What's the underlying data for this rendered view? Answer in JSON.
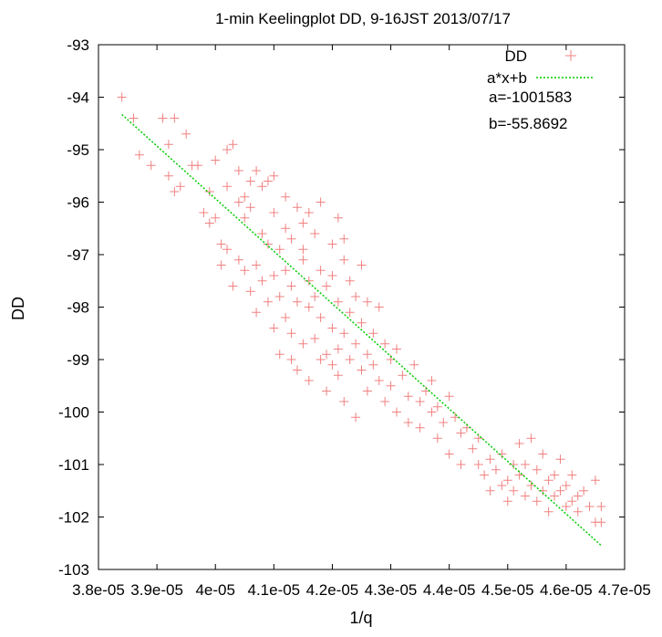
{
  "chart_data": {
    "type": "scatter",
    "title": "1-min Keelingplot DD, 9-16JST 2013/07/17",
    "xlabel": "1/q",
    "ylabel": "DD",
    "xlim": [
      3.8e-05,
      4.7e-05
    ],
    "ylim": [
      -103,
      -93
    ],
    "x_ticks": [
      {
        "value": 3.8e-05,
        "label": "3.8e-05"
      },
      {
        "value": 3.9e-05,
        "label": "3.9e-05"
      },
      {
        "value": 4e-05,
        "label": "4e-05"
      },
      {
        "value": 4.1e-05,
        "label": "4.1e-05"
      },
      {
        "value": 4.2e-05,
        "label": "4.2e-05"
      },
      {
        "value": 4.3e-05,
        "label": "4.3e-05"
      },
      {
        "value": 4.4e-05,
        "label": "4.4e-05"
      },
      {
        "value": 4.5e-05,
        "label": "4.5e-05"
      },
      {
        "value": 4.6e-05,
        "label": "4.6e-05"
      },
      {
        "value": 4.7e-05,
        "label": "4.7e-05"
      }
    ],
    "y_ticks": [
      {
        "value": -93,
        "label": "-93"
      },
      {
        "value": -94,
        "label": "-94"
      },
      {
        "value": -95,
        "label": "-95"
      },
      {
        "value": -96,
        "label": "-96"
      },
      {
        "value": -97,
        "label": "-97"
      },
      {
        "value": -98,
        "label": "-98"
      },
      {
        "value": -99,
        "label": "-99"
      },
      {
        "value": -100,
        "label": "-100"
      },
      {
        "value": -101,
        "label": "-101"
      },
      {
        "value": -102,
        "label": "-102"
      },
      {
        "value": -103,
        "label": "-103"
      }
    ],
    "grid": false,
    "legend_position": "top-right",
    "series": [
      {
        "name": "DD",
        "kind": "scatter",
        "marker": "plus",
        "color": "#f08080",
        "points": [
          [
            3.84e-05,
            -94.0
          ],
          [
            3.86e-05,
            -94.4
          ],
          [
            3.87e-05,
            -95.1
          ],
          [
            3.89e-05,
            -95.3
          ],
          [
            3.91e-05,
            -94.4
          ],
          [
            3.93e-05,
            -94.4
          ],
          [
            3.92e-05,
            -94.9
          ],
          [
            3.92e-05,
            -95.5
          ],
          [
            3.93e-05,
            -95.8
          ],
          [
            3.94e-05,
            -95.7
          ],
          [
            3.95e-05,
            -94.7
          ],
          [
            3.96e-05,
            -95.3
          ],
          [
            3.97e-05,
            -95.3
          ],
          [
            3.98e-05,
            -96.2
          ],
          [
            3.99e-05,
            -95.8
          ],
          [
            3.99e-05,
            -96.4
          ],
          [
            4e-05,
            -96.3
          ],
          [
            4e-05,
            -95.2
          ],
          [
            4.01e-05,
            -96.8
          ],
          [
            4.01e-05,
            -97.2
          ],
          [
            4.02e-05,
            -96.9
          ],
          [
            4.02e-05,
            -95.7
          ],
          [
            4.02e-05,
            -95.0
          ],
          [
            4.03e-05,
            -94.9
          ],
          [
            4.03e-05,
            -97.6
          ],
          [
            4.04e-05,
            -96.0
          ],
          [
            4.04e-05,
            -97.1
          ],
          [
            4.04e-05,
            -95.4
          ],
          [
            4.05e-05,
            -97.3
          ],
          [
            4.05e-05,
            -96.3
          ],
          [
            4.05e-05,
            -95.9
          ],
          [
            4.06e-05,
            -97.7
          ],
          [
            4.06e-05,
            -95.6
          ],
          [
            4.06e-05,
            -96.1
          ],
          [
            4.07e-05,
            -95.4
          ],
          [
            4.07e-05,
            -97.2
          ],
          [
            4.07e-05,
            -98.1
          ],
          [
            4.08e-05,
            -96.6
          ],
          [
            4.08e-05,
            -95.7
          ],
          [
            4.08e-05,
            -97.5
          ],
          [
            4.09e-05,
            -96.8
          ],
          [
            4.09e-05,
            -95.6
          ],
          [
            4.09e-05,
            -97.9
          ],
          [
            4.1e-05,
            -96.2
          ],
          [
            4.1e-05,
            -97.4
          ],
          [
            4.1e-05,
            -95.5
          ],
          [
            4.1e-05,
            -98.4
          ],
          [
            4.11e-05,
            -96.9
          ],
          [
            4.11e-05,
            -97.8
          ],
          [
            4.11e-05,
            -98.9
          ],
          [
            4.12e-05,
            -96.5
          ],
          [
            4.12e-05,
            -97.3
          ],
          [
            4.12e-05,
            -98.2
          ],
          [
            4.12e-05,
            -95.9
          ],
          [
            4.13e-05,
            -99.0
          ],
          [
            4.13e-05,
            -96.7
          ],
          [
            4.13e-05,
            -97.6
          ],
          [
            4.13e-05,
            -98.5
          ],
          [
            4.14e-05,
            -96.1
          ],
          [
            4.14e-05,
            -97.9
          ],
          [
            4.14e-05,
            -99.2
          ],
          [
            4.15e-05,
            -96.4
          ],
          [
            4.15e-05,
            -97.1
          ],
          [
            4.15e-05,
            -98.7
          ],
          [
            4.15e-05,
            -96.9
          ],
          [
            4.16e-05,
            -97.5
          ],
          [
            4.16e-05,
            -98.0
          ],
          [
            4.16e-05,
            -99.4
          ],
          [
            4.16e-05,
            -96.2
          ],
          [
            4.17e-05,
            -97.8
          ],
          [
            4.17e-05,
            -98.6
          ],
          [
            4.17e-05,
            -96.6
          ],
          [
            4.18e-05,
            -97.3
          ],
          [
            4.18e-05,
            -99.0
          ],
          [
            4.18e-05,
            -98.2
          ],
          [
            4.18e-05,
            -96.0
          ],
          [
            4.19e-05,
            -97.6
          ],
          [
            4.19e-05,
            -98.9
          ],
          [
            4.19e-05,
            -99.6
          ],
          [
            4.2e-05,
            -96.8
          ],
          [
            4.2e-05,
            -97.4
          ],
          [
            4.2e-05,
            -98.4
          ],
          [
            4.2e-05,
            -99.1
          ],
          [
            4.21e-05,
            -96.3
          ],
          [
            4.21e-05,
            -97.9
          ],
          [
            4.21e-05,
            -98.8
          ],
          [
            4.21e-05,
            -99.3
          ],
          [
            4.22e-05,
            -97.1
          ],
          [
            4.22e-05,
            -98.5
          ],
          [
            4.22e-05,
            -96.7
          ],
          [
            4.22e-05,
            -99.8
          ],
          [
            4.23e-05,
            -97.5
          ],
          [
            4.23e-05,
            -98.1
          ],
          [
            4.23e-05,
            -99.0
          ],
          [
            4.24e-05,
            -97.8
          ],
          [
            4.24e-05,
            -98.7
          ],
          [
            4.24e-05,
            -100.1
          ],
          [
            4.25e-05,
            -97.2
          ],
          [
            4.25e-05,
            -98.3
          ],
          [
            4.25e-05,
            -99.2
          ],
          [
            4.26e-05,
            -97.9
          ],
          [
            4.26e-05,
            -98.9
          ],
          [
            4.26e-05,
            -99.6
          ],
          [
            4.27e-05,
            -98.5
          ],
          [
            4.27e-05,
            -99.1
          ],
          [
            4.28e-05,
            -98.0
          ],
          [
            4.28e-05,
            -99.4
          ],
          [
            4.29e-05,
            -98.7
          ],
          [
            4.29e-05,
            -99.8
          ],
          [
            4.3e-05,
            -99.0
          ],
          [
            4.3e-05,
            -99.5
          ],
          [
            4.31e-05,
            -98.8
          ],
          [
            4.31e-05,
            -100.0
          ],
          [
            4.32e-05,
            -99.3
          ],
          [
            4.33e-05,
            -99.7
          ],
          [
            4.33e-05,
            -100.2
          ],
          [
            4.34e-05,
            -99.1
          ],
          [
            4.35e-05,
            -99.8
          ],
          [
            4.35e-05,
            -100.3
          ],
          [
            4.36e-05,
            -99.6
          ],
          [
            4.37e-05,
            -100.0
          ],
          [
            4.37e-05,
            -99.4
          ],
          [
            4.38e-05,
            -100.5
          ],
          [
            4.38e-05,
            -99.9
          ],
          [
            4.39e-05,
            -100.2
          ],
          [
            4.4e-05,
            -99.7
          ],
          [
            4.4e-05,
            -100.8
          ],
          [
            4.41e-05,
            -100.1
          ],
          [
            4.42e-05,
            -100.4
          ],
          [
            4.42e-05,
            -101.0
          ],
          [
            4.43e-05,
            -100.3
          ],
          [
            4.44e-05,
            -100.7
          ],
          [
            4.45e-05,
            -101.0
          ],
          [
            4.45e-05,
            -100.5
          ],
          [
            4.46e-05,
            -101.2
          ],
          [
            4.47e-05,
            -100.9
          ],
          [
            4.47e-05,
            -101.5
          ],
          [
            4.48e-05,
            -101.1
          ],
          [
            4.49e-05,
            -101.4
          ],
          [
            4.49e-05,
            -100.8
          ],
          [
            4.5e-05,
            -101.3
          ],
          [
            4.5e-05,
            -101.7
          ],
          [
            4.51e-05,
            -101.0
          ],
          [
            4.51e-05,
            -101.5
          ],
          [
            4.52e-05,
            -101.2
          ],
          [
            4.52e-05,
            -100.6
          ],
          [
            4.53e-05,
            -101.6
          ],
          [
            4.53e-05,
            -101.0
          ],
          [
            4.54e-05,
            -101.4
          ],
          [
            4.54e-05,
            -100.5
          ],
          [
            4.55e-05,
            -101.7
          ],
          [
            4.55e-05,
            -101.1
          ],
          [
            4.56e-05,
            -101.5
          ],
          [
            4.56e-05,
            -100.8
          ],
          [
            4.57e-05,
            -101.3
          ],
          [
            4.57e-05,
            -101.9
          ],
          [
            4.58e-05,
            -101.6
          ],
          [
            4.58e-05,
            -101.2
          ],
          [
            4.59e-05,
            -101.5
          ],
          [
            4.59e-05,
            -100.9
          ],
          [
            4.6e-05,
            -101.8
          ],
          [
            4.6e-05,
            -101.4
          ],
          [
            4.61e-05,
            -101.7
          ],
          [
            4.61e-05,
            -101.2
          ],
          [
            4.62e-05,
            -101.6
          ],
          [
            4.62e-05,
            -101.9
          ],
          [
            4.63e-05,
            -101.5
          ],
          [
            4.64e-05,
            -101.8
          ],
          [
            4.65e-05,
            -101.3
          ],
          [
            4.66e-05,
            -102.1
          ],
          [
            4.66e-05,
            -101.8
          ],
          [
            4.65e-05,
            -102.1
          ]
        ]
      },
      {
        "name": "a*x+b",
        "kind": "line",
        "style": "dotted",
        "color": "#00cc00",
        "a": -1001583,
        "b": -55.8692,
        "x_range": [
          3.84e-05,
          4.66e-05
        ]
      }
    ],
    "annotations": [
      "a=-1001583",
      "b=-55.8692"
    ]
  }
}
